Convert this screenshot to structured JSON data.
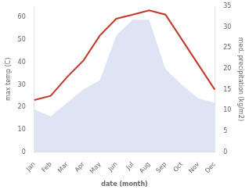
{
  "chart_data": {
    "type": "area",
    "categories": [
      "Jan",
      "Feb",
      "Mar",
      "Apr",
      "May",
      "Jun",
      "Jul",
      "Aug",
      "Sep",
      "Oct",
      "Nov",
      "Dec"
    ],
    "series": [
      {
        "type": "area",
        "color": "#b8c4e8",
        "values": [
          19,
          16,
          22,
          28,
          32,
          52,
          59,
          59,
          37,
          30,
          24,
          22
        ]
      },
      {
        "type": "line",
        "color": "#c0392b",
        "axis": "y2",
        "values": [
          12.5,
          13.5,
          18,
          22,
          28,
          32,
          33,
          34,
          33,
          27,
          21,
          15
        ]
      }
    ],
    "xlabel": "date (month)",
    "ylabel": "max temp (C)",
    "y2label": "med. precipitation (kg/m2)",
    "ylim": [
      0,
      65
    ],
    "yticks": [
      0,
      10,
      20,
      30,
      40,
      50,
      60
    ],
    "y2lim": [
      0,
      35
    ],
    "y2ticks": [
      0,
      5,
      10,
      15,
      20,
      25,
      30,
      35
    ],
    "grid": false
  }
}
